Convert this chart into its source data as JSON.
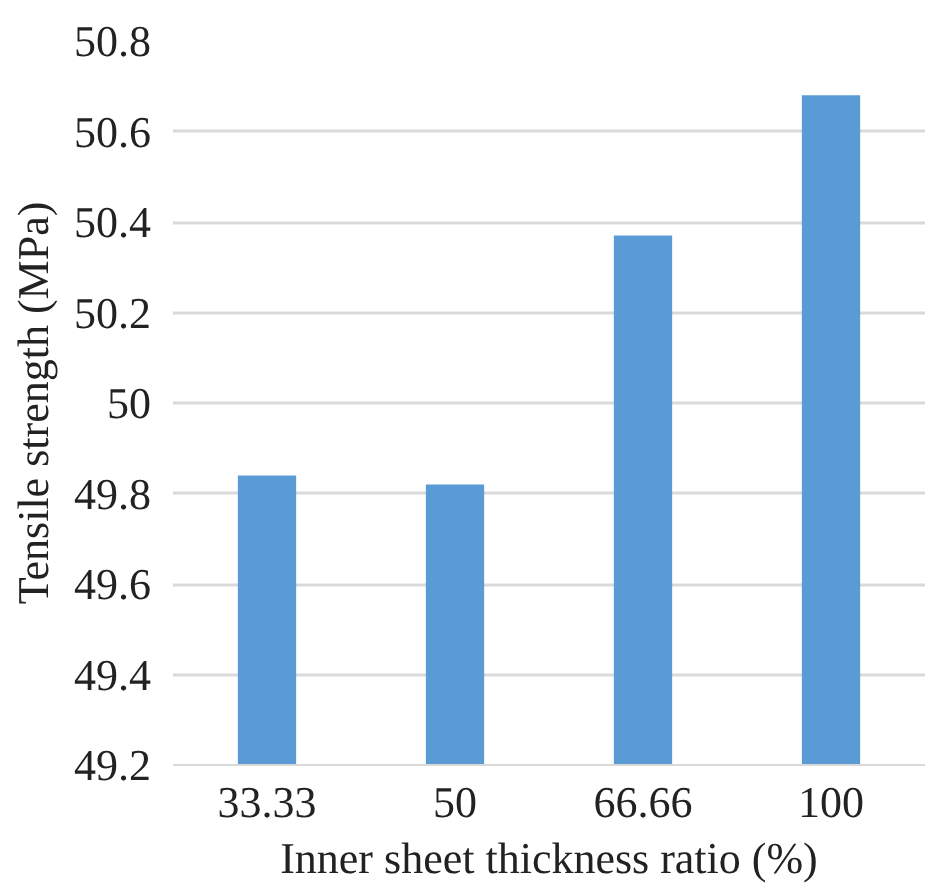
{
  "chart_data": {
    "type": "bar",
    "xlabel": "Inner sheet thickness ratio (%)",
    "ylabel": "Tensile strength (MPa)",
    "categories": [
      "33.33",
      "50",
      "66.66",
      "100"
    ],
    "values": [
      49.84,
      49.82,
      50.37,
      50.68
    ],
    "color": "#5b9bd5",
    "ylim": [
      49.2,
      50.8
    ],
    "yticks": [
      49.2,
      49.4,
      49.6,
      49.8,
      50,
      50.2,
      50.4,
      50.6,
      50.8
    ],
    "grid": "y"
  }
}
